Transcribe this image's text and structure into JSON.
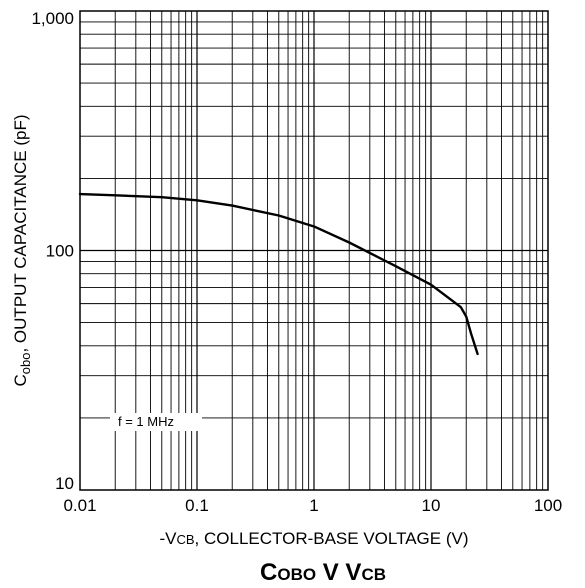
{
  "chart_data": {
    "type": "line",
    "title": {
      "c": "C",
      "obo": "OBO",
      "v": " V ",
      "v2": "V",
      "cb": "CB"
    },
    "xlabel": {
      "prefix": "-V",
      "sub": "CB",
      "rest": ", COLLECTOR-BASE VOLTAGE (V)"
    },
    "ylabel": {
      "prefix": "C",
      "sub": "obo",
      "rest": ", OUTPUT CAPACITANCE (pF)"
    },
    "x_scale": "log",
    "y_scale": "log",
    "xlim": [
      0.01,
      100
    ],
    "ylim": [
      10,
      1000
    ],
    "x_tick_labels": [
      "0.01",
      "0.1",
      "1",
      "10",
      "100"
    ],
    "y_tick_labels": [
      "10",
      "100",
      "1,000"
    ],
    "x_tick_values": [
      0.01,
      0.1,
      1,
      10,
      100
    ],
    "y_tick_values": [
      10,
      100,
      1000
    ],
    "grid": true,
    "annotation": "f = 1 MHz",
    "series": [
      {
        "x": [
          0.01,
          0.02,
          0.05,
          0.1,
          0.2,
          0.5,
          1,
          2,
          5,
          10,
          15,
          18,
          20,
          22,
          25
        ],
        "y": [
          172,
          170,
          167,
          162,
          154,
          140,
          126,
          108,
          86,
          72,
          62,
          58,
          53,
          45,
          37
        ]
      }
    ],
    "line_color": "#000000"
  }
}
